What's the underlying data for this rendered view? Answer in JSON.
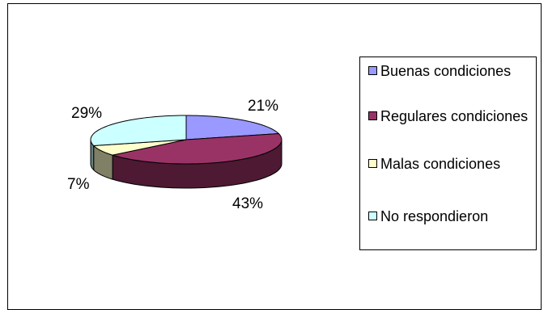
{
  "chart_data": {
    "type": "pie",
    "style": "3d",
    "categories": [
      "Buenas condiciones",
      "Regulares condiciones",
      "Malas condiciones",
      "No respondieron"
    ],
    "values": [
      21,
      43,
      7,
      29
    ],
    "value_labels": [
      "21%",
      "43%",
      "7%",
      "29%"
    ],
    "colors": [
      "#9999FF",
      "#993366",
      "#FFFFCC",
      "#CCFFFF"
    ],
    "side_colors": [
      "#4C4C80",
      "#4D1933",
      "#808066",
      "#668080"
    ],
    "legend": {
      "position": "right",
      "entries": [
        "Buenas condiciones",
        "Regulares condiciones",
        "Malas condiciones",
        "No respondieron"
      ]
    }
  }
}
